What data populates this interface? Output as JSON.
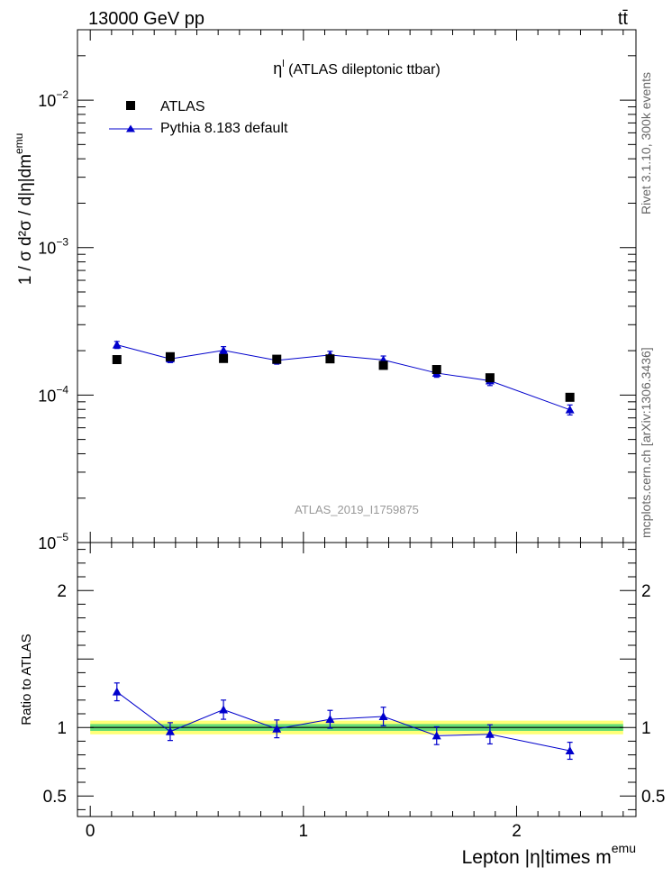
{
  "header": {
    "energy_label": "13000 GeV pp",
    "process_label": "tt̄",
    "observable_symbol": "η",
    "observable_superscript": "l",
    "observable_desc": " (ATLAS dileptonic ttbar)",
    "analysis_id": "ATLAS_2019_I1759875",
    "side_label_top": "Rivet 3.1.10,  300k events",
    "side_label_bottom": "mcplots.cern.ch [arXiv:1306.3436]"
  },
  "axes": {
    "ylabel_main": "1 / σ  d²σ / d|η|dm",
    "ylabel_main_sup": "emu",
    "ylabel_ratio": "Ratio to ATLAS",
    "xlabel": "Lepton |η|times m",
    "xlabel_sup": "emu"
  },
  "colors": {
    "data": "#000000",
    "mc": "#0000cc",
    "band_inner": "#66dd77",
    "band_outer": "#ffff77"
  },
  "chart_data": [
    {
      "type": "scatter",
      "panel": "main",
      "yscale": "log",
      "xlim": [
        -0.06,
        2.56
      ],
      "ylim": [
        1e-05,
        0.03
      ],
      "x_ticks": [
        0,
        1,
        2
      ],
      "y_tick_labels": [
        {
          "value": 1e-05,
          "base": "10",
          "exp": "−5"
        },
        {
          "value": 0.0001,
          "base": "10",
          "exp": "−4"
        },
        {
          "value": 0.001,
          "base": "10",
          "exp": "−3"
        },
        {
          "value": 0.01,
          "base": "10",
          "exp": "−2"
        }
      ],
      "legend": {
        "placement": "top-left",
        "entries": [
          "ATLAS",
          "Pythia 8.183 default"
        ]
      },
      "series": [
        {
          "name": "ATLAS",
          "marker": "square",
          "x": [
            0.125,
            0.375,
            0.625,
            0.875,
            1.125,
            1.375,
            1.625,
            1.875,
            2.25
          ],
          "y": [
            0.000174,
            0.000182,
            0.000177,
            0.000175,
            0.000176,
            0.000159,
            0.000149,
            0.000131,
            9.66e-05
          ]
        },
        {
          "name": "Pythia 8.183 default",
          "marker": "triangle",
          "x": [
            0.125,
            0.375,
            0.625,
            0.875,
            1.125,
            1.375,
            1.625,
            1.875,
            2.25
          ],
          "y": [
            0.000219,
            0.000176,
            0.000201,
            0.000172,
            0.000187,
            0.000173,
            0.000141,
            0.000125,
            7.95e-05
          ],
          "err": [
            1.2e-05,
            1e-05,
            1.2e-05,
            1e-05,
            1.1e-05,
            1.1e-05,
            9e-06,
            9e-06,
            6.2e-06
          ]
        }
      ]
    },
    {
      "type": "line",
      "panel": "ratio",
      "xlim": [
        -0.06,
        2.56
      ],
      "ylim": [
        0.35,
        2.35
      ],
      "x_ticks": [
        0,
        1,
        2
      ],
      "x_tick_labels": [
        "0",
        "1",
        "2"
      ],
      "y_labeled_ticks": [
        0.5,
        1,
        2
      ],
      "y_tick_labels": [
        "0.5",
        "1",
        "2"
      ],
      "reference": 1.0,
      "band_inner": 0.025,
      "band_outer": 0.05,
      "series": [
        {
          "name": "Pythia 8.183 default",
          "x": [
            0.125,
            0.375,
            0.625,
            0.875,
            1.125,
            1.375,
            1.625,
            1.875,
            2.25
          ],
          "y": [
            1.26,
            0.97,
            1.13,
            0.99,
            1.06,
            1.08,
            0.94,
            0.95,
            0.83
          ],
          "err": [
            0.065,
            0.065,
            0.07,
            0.065,
            0.065,
            0.068,
            0.065,
            0.07,
            0.062
          ]
        }
      ]
    }
  ]
}
